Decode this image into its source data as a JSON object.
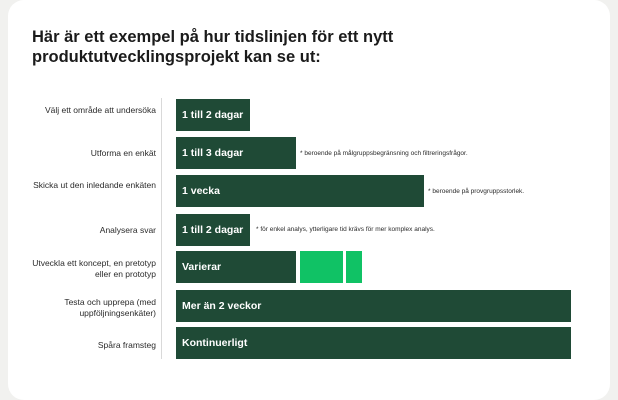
{
  "title": "Här är ett exempel på hur tidslinjen för ett nytt produktutvecklingsprojekt kan se ut:",
  "colors": {
    "bar": "#1f4a36",
    "accent": "#10c265",
    "background": "#ffffff"
  },
  "rows": [
    {
      "label": "Välj ett område att undersöka",
      "bar": "1 till 2 dagar",
      "note": ""
    },
    {
      "label": "Utforma en enkät",
      "bar": "1 till 3 dagar",
      "note": "* beroende på målgruppsbegränsning och filtreringsfrågor."
    },
    {
      "label": "Skicka ut den inledande enkäten",
      "bar": "1 vecka",
      "note": "* beroende på provgruppsstorlek."
    },
    {
      "label": "Analysera svar",
      "bar": "1 till 2 dagar",
      "note": "* för enkel analys, ytterligare tid krävs för mer komplex analys."
    },
    {
      "label": "Utveckla ett koncept, en pretotyp eller en prototyp",
      "bar": "Varierar",
      "note": ""
    },
    {
      "label": "Testa och upprepa (med uppföljningsenkäter)",
      "bar": "Mer än 2 veckor",
      "note": ""
    },
    {
      "label": "Spåra framsteg",
      "bar": "Kontinuerligt",
      "note": ""
    }
  ]
}
